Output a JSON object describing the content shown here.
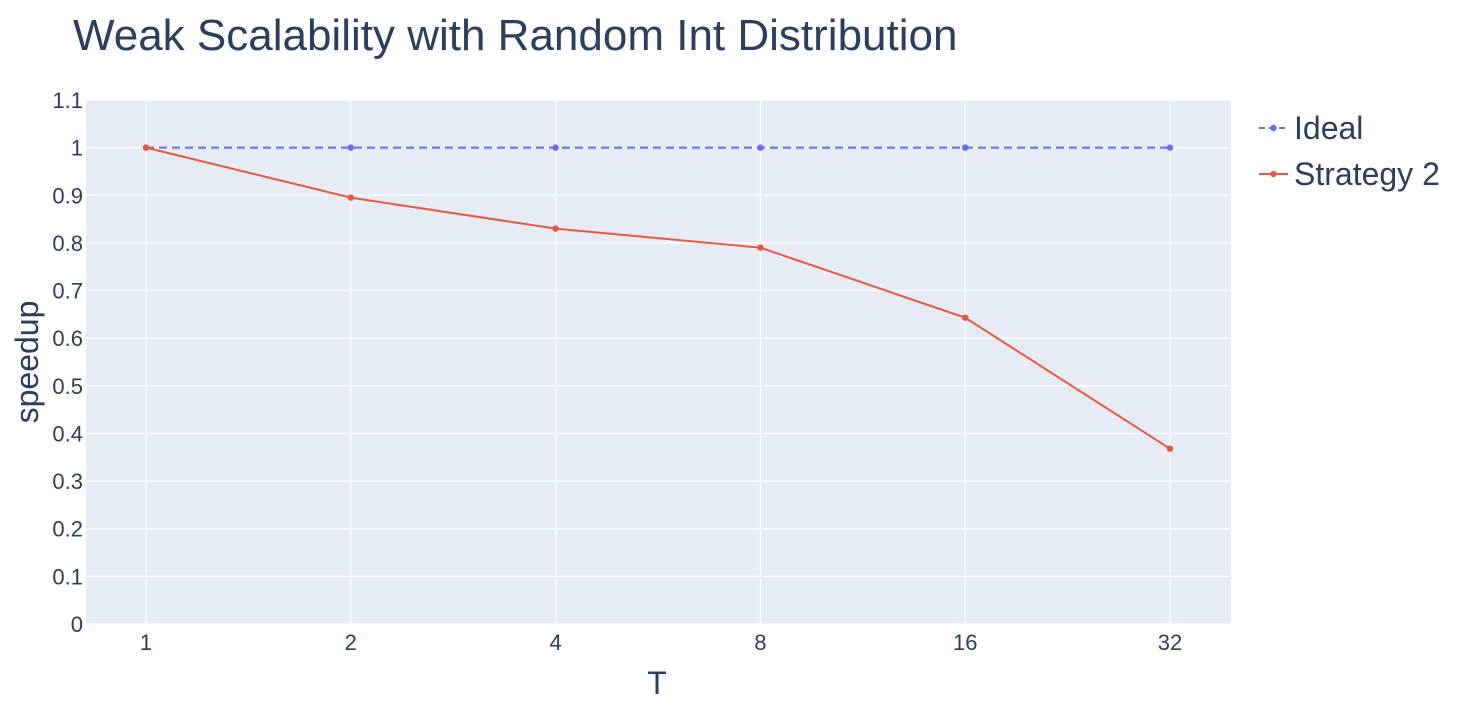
{
  "chart_data": {
    "type": "line",
    "title": "Weak Scalability with Random Int Distribution",
    "xlabel": "T",
    "ylabel": "speedup",
    "x_scale": "log2",
    "x": [
      1,
      2,
      4,
      8,
      16,
      32
    ],
    "ylim": [
      0,
      1.1
    ],
    "y_ticks": [
      "0",
      "0.1",
      "0.2",
      "0.3",
      "0.4",
      "0.5",
      "0.6",
      "0.7",
      "0.8",
      "0.9",
      "1",
      "1.1"
    ],
    "x_ticks": [
      "1",
      "2",
      "4",
      "8",
      "16",
      "32"
    ],
    "grid": true,
    "legend_position": "top-right",
    "background_color": "#e5ecf6",
    "series": [
      {
        "name": "Ideal",
        "values": [
          1,
          1,
          1,
          1,
          1,
          1
        ],
        "color": "#636efa",
        "dash": "dashed"
      },
      {
        "name": "Strategy 2",
        "values": [
          1.0,
          0.895,
          0.83,
          0.79,
          0.643,
          0.368
        ],
        "color": "#ef553b",
        "dash": "solid"
      }
    ]
  }
}
